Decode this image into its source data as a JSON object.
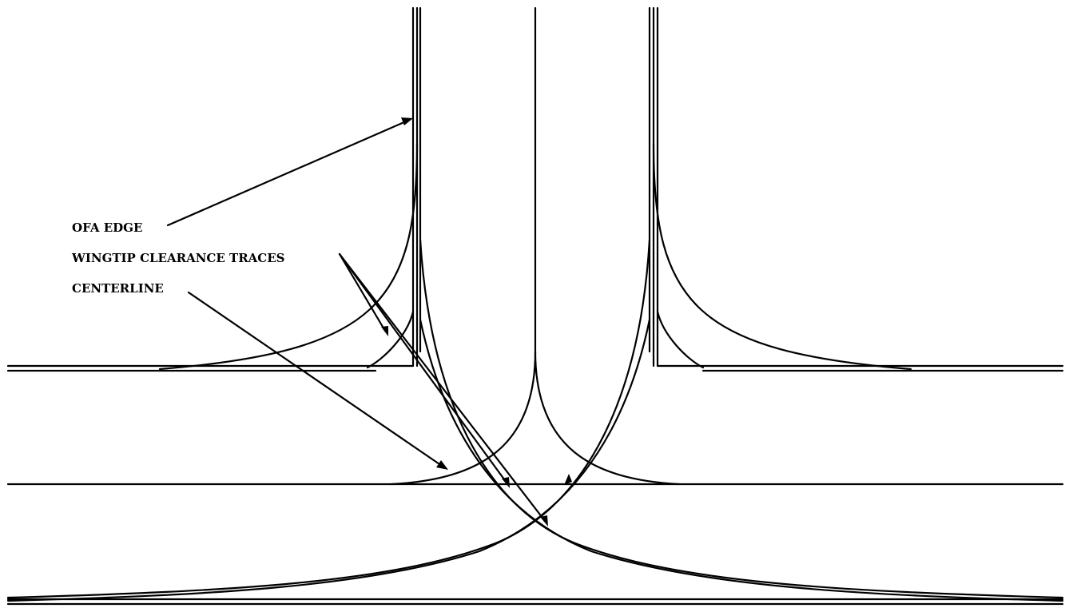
{
  "diagram": {
    "labels": {
      "ofa_edge": "OFA EDGE",
      "wingtip_clearance_traces": "WINGTIP CLEARANCE TRACES",
      "centerline": "CENTERLINE"
    },
    "colors": {
      "line": "#000000",
      "background": "#ffffff"
    }
  }
}
